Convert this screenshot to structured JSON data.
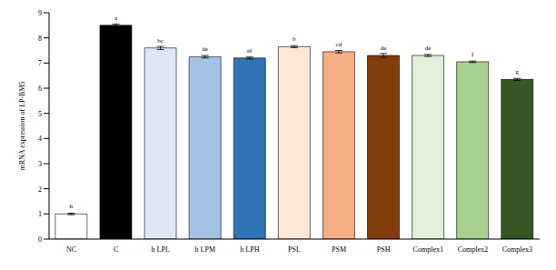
{
  "chart_data": {
    "type": "bar",
    "y_label": "mRNA expression of LP-BM5",
    "categories": [
      "NC",
      "C",
      "h LPL",
      "h LPM",
      "h LPH",
      "PSL",
      "PSM",
      "PSH",
      "Complex1",
      "Complex2",
      "Complex3"
    ],
    "values": [
      1.0,
      8.5,
      7.6,
      7.25,
      7.2,
      7.65,
      7.45,
      7.3,
      7.3,
      7.05,
      6.35
    ],
    "errors": [
      0.03,
      0.05,
      0.06,
      0.05,
      0.04,
      0.04,
      0.05,
      0.08,
      0.04,
      0.03,
      0.04
    ],
    "letters": [
      "h",
      "a",
      "bc",
      "de",
      "ef",
      "b",
      "cd",
      "de",
      "de",
      "f",
      "g"
    ],
    "colors": [
      "#ffffff",
      "#000000",
      "#dce8f6",
      "#a4c2e6",
      "#2f74b5",
      "#fde7d6",
      "#f4b084",
      "#843c0b",
      "#e2efda",
      "#a9d08e",
      "#375623"
    ],
    "ylim": [
      0,
      9
    ],
    "yticks": [
      0,
      1,
      2,
      3,
      4,
      5,
      6,
      7,
      8,
      9
    ],
    "grid": false
  }
}
